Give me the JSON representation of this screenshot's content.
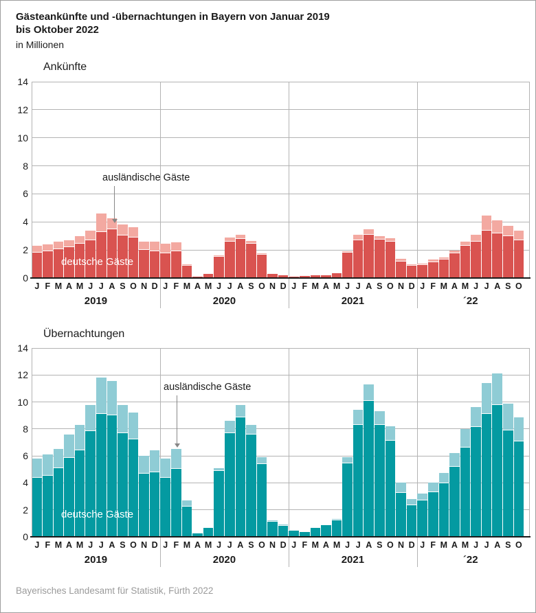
{
  "page": {
    "title_line1": "Gästeankünfte und -übernachtungen in Bayern von Januar 2019",
    "title_line2": "bis Oktober 2022",
    "subtitle": "in Millionen",
    "footer": "Bayerisches Landesamt für Statistik, Fürth 2022"
  },
  "annotations": {
    "foreign_label": "ausländische Gäste",
    "domestic_label": "deutsche Gäste"
  },
  "colors": {
    "red_dark": "#d95350",
    "red_light": "#f3a9a1",
    "teal_dark": "#049aa1",
    "teal_light": "#8fccd5",
    "gridline": "#b3b3b3",
    "axis": "#1a1a1a",
    "annotation_arrow": "#878787",
    "footer_text": "#9b9b9b",
    "text": "#1a1a1a"
  },
  "chart_data": [
    {
      "id": "ankuenfte",
      "type": "bar",
      "stacked": true,
      "title": "Ankünfte",
      "ylabel": "Millionen",
      "ylim": [
        0,
        14
      ],
      "yticks": [
        0,
        2,
        4,
        6,
        8,
        10,
        12,
        14
      ],
      "grid": true,
      "month_labels": [
        "J",
        "F",
        "M",
        "A",
        "M",
        "J",
        "J",
        "A",
        "S",
        "O",
        "N",
        "D",
        "J",
        "F",
        "M",
        "A",
        "M",
        "J",
        "J",
        "A",
        "S",
        "O",
        "N",
        "D",
        "J",
        "F",
        "M",
        "A",
        "M",
        "J",
        "J",
        "A",
        "S",
        "O",
        "N",
        "D",
        "J",
        "F",
        "M",
        "A",
        "M",
        "J",
        "J",
        "A",
        "S",
        "O"
      ],
      "year_groups": [
        {
          "label": "2019",
          "count": 12
        },
        {
          "label": "2020",
          "count": 12
        },
        {
          "label": "2021",
          "count": 12
        },
        {
          "label": "´22",
          "count": 10
        }
      ],
      "series": [
        {
          "name": "deutsche Gäste",
          "color_key": "red_dark",
          "values": [
            1.8,
            1.9,
            2.05,
            2.2,
            2.45,
            2.7,
            3.3,
            3.5,
            3.05,
            2.9,
            2.0,
            1.9,
            1.75,
            1.9,
            0.9,
            0.1,
            0.28,
            1.5,
            2.6,
            2.8,
            2.45,
            1.65,
            0.3,
            0.22,
            0.1,
            0.13,
            0.22,
            0.18,
            0.35,
            1.8,
            2.7,
            3.1,
            2.75,
            2.6,
            1.2,
            0.9,
            0.95,
            1.15,
            1.3,
            1.75,
            2.3,
            2.6,
            3.4,
            3.2,
            3.0,
            2.7
          ]
        },
        {
          "name": "ausländische Gäste",
          "color_key": "red_light",
          "values": [
            0.5,
            0.5,
            0.55,
            0.5,
            0.55,
            0.7,
            1.3,
            0.75,
            0.75,
            0.7,
            0.6,
            0.7,
            0.7,
            0.65,
            0.1,
            0.02,
            0.02,
            0.1,
            0.3,
            0.3,
            0.2,
            0.1,
            0.03,
            0.03,
            0.02,
            0.02,
            0.03,
            0.02,
            0.05,
            0.1,
            0.4,
            0.4,
            0.25,
            0.25,
            0.15,
            0.1,
            0.1,
            0.15,
            0.15,
            0.2,
            0.3,
            0.5,
            1.05,
            0.9,
            0.7,
            0.7
          ]
        }
      ]
    },
    {
      "id": "uebernachtungen",
      "type": "bar",
      "stacked": true,
      "title": "Übernachtungen",
      "ylabel": "Millionen",
      "ylim": [
        0,
        14
      ],
      "yticks": [
        0,
        2,
        4,
        6,
        8,
        10,
        12,
        14
      ],
      "grid": true,
      "month_labels": [
        "J",
        "F",
        "M",
        "A",
        "M",
        "J",
        "J",
        "A",
        "S",
        "O",
        "N",
        "D",
        "J",
        "F",
        "M",
        "A",
        "M",
        "J",
        "J",
        "A",
        "S",
        "O",
        "N",
        "D",
        "J",
        "F",
        "M",
        "A",
        "M",
        "J",
        "J",
        "A",
        "S",
        "O",
        "N",
        "D",
        "J",
        "F",
        "M",
        "A",
        "M",
        "J",
        "J",
        "A",
        "S",
        "O"
      ],
      "year_groups": [
        {
          "label": "2019",
          "count": 12
        },
        {
          "label": "2020",
          "count": 12
        },
        {
          "label": "2021",
          "count": 12
        },
        {
          "label": "´22",
          "count": 10
        }
      ],
      "series": [
        {
          "name": "deutsche Gäste",
          "color_key": "teal_dark",
          "values": [
            4.4,
            4.55,
            5.1,
            5.85,
            6.4,
            7.85,
            9.1,
            9.0,
            7.7,
            7.25,
            4.7,
            4.8,
            4.4,
            5.05,
            2.25,
            0.28,
            0.65,
            4.9,
            7.7,
            8.85,
            7.6,
            5.4,
            1.1,
            0.8,
            0.45,
            0.37,
            0.65,
            0.85,
            1.2,
            5.45,
            8.3,
            10.1,
            8.3,
            7.15,
            3.25,
            2.35,
            2.7,
            3.3,
            3.95,
            5.2,
            6.6,
            8.15,
            9.1,
            9.8,
            7.9,
            7.1
          ]
        },
        {
          "name": "ausländische Gäste",
          "color_key": "teal_light",
          "values": [
            1.4,
            1.55,
            1.4,
            1.75,
            1.9,
            1.95,
            2.7,
            2.55,
            2.1,
            1.95,
            1.3,
            1.6,
            1.4,
            1.45,
            0.45,
            0.02,
            0.05,
            0.2,
            0.9,
            0.95,
            0.7,
            0.5,
            0.1,
            0.1,
            0.05,
            0.03,
            0.05,
            0.05,
            0.1,
            0.45,
            1.1,
            1.2,
            1.0,
            1.05,
            0.75,
            0.45,
            0.5,
            0.7,
            0.8,
            1.0,
            1.4,
            1.45,
            2.3,
            2.3,
            2.0,
            1.75
          ]
        }
      ]
    }
  ]
}
